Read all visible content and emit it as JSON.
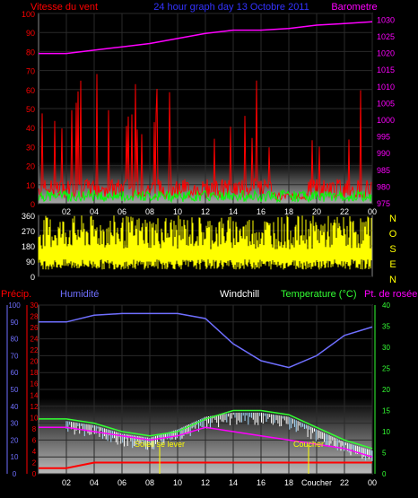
{
  "top_chart": {
    "title_left": "Vitesse du vent",
    "title_center": "24 hour graph day 13 Octobre 2011",
    "title_right": "Barometre",
    "left_axis_ticks": [
      "0",
      "10",
      "20",
      "30",
      "40",
      "50",
      "60",
      "70",
      "80",
      "90",
      "100"
    ],
    "right_axis_ticks": [
      "975",
      "980",
      "985",
      "990",
      "995",
      "1000",
      "1005",
      "1010",
      "1015",
      "1020",
      "1025",
      "1030"
    ],
    "x_ticks": [
      "02",
      "04",
      "06",
      "08",
      "10",
      "12",
      "14",
      "16",
      "18",
      "20",
      "22",
      "00"
    ],
    "colors": {
      "wind": "#ff0000",
      "gust": "#00ff00",
      "barometer": "#ff00ff",
      "left_axis": "#ff0000",
      "right_axis": "#ff00ff"
    }
  },
  "mid_chart": {
    "left_axis_ticks": [
      "0",
      "90",
      "180",
      "270",
      "360"
    ],
    "direction_labels": [
      "N",
      "O",
      "S",
      "E",
      "N"
    ],
    "color": "#ffff00"
  },
  "bottom_chart": {
    "label_precip": "Précip.",
    "label_humidity": "Humidité",
    "label_windchill": "Windchill",
    "label_temperature": "Temperature (°C)",
    "label_dewpoint": "Pt. de rosée",
    "humidity_ticks": [
      "0",
      "10",
      "20",
      "30",
      "40",
      "50",
      "60",
      "70",
      "80",
      "90",
      "100"
    ],
    "precip_ticks": [
      "0",
      "2",
      "4",
      "6",
      "8",
      "10",
      "12",
      "14",
      "16",
      "18",
      "20",
      "22",
      "24",
      "26",
      "28",
      "30"
    ],
    "temp_ticks": [
      "0",
      "5",
      "10",
      "15",
      "20",
      "25",
      "30",
      "35",
      "40"
    ],
    "x_ticks": [
      "02",
      "04",
      "06",
      "08",
      "10",
      "12",
      "14",
      "16",
      "18",
      "Coucher",
      "22",
      "00"
    ],
    "sunrise_label": "Soleil se lever",
    "sunset_label": "Coucher",
    "colors": {
      "precip": "#ff0000",
      "humidity": "#6f6fff",
      "temperature": "#33ff33",
      "windchill": "#ffffff",
      "dewpoint": "#ff00ff"
    }
  },
  "chart_data": [
    {
      "type": "line",
      "title": "24 hour graph day 13 Octobre 2011",
      "ylabel": "Vitesse du vent",
      "y2label": "Barometre",
      "x": [
        "02",
        "04",
        "06",
        "08",
        "10",
        "12",
        "14",
        "16",
        "18",
        "20",
        "22",
        "00"
      ],
      "ylim": [
        0,
        100
      ],
      "y2lim": [
        975,
        1032
      ],
      "series": [
        {
          "name": "Barometre",
          "axis": "right",
          "values": [
            1020,
            1021,
            1022,
            1023,
            1024.5,
            1026,
            1027,
            1027,
            1027.5,
            1028.5,
            1029,
            1029.5
          ]
        }
      ]
    },
    {
      "type": "bar",
      "ylim": [
        0,
        360
      ],
      "x": [
        "02",
        "04",
        "06",
        "08",
        "10",
        "12",
        "14",
        "16",
        "18",
        "20",
        "22",
        "00"
      ]
    },
    {
      "type": "line",
      "x": [
        "02",
        "04",
        "06",
        "08",
        "10",
        "12",
        "14",
        "16",
        "18",
        "Coucher",
        "22",
        "00"
      ],
      "series": [
        {
          "name": "Humidité",
          "axis": "humidity",
          "values": [
            90,
            94,
            95,
            95,
            95,
            92,
            77,
            67,
            63,
            70,
            82,
            87
          ]
        },
        {
          "name": "Temperature (°C)",
          "axis": "temp",
          "values": [
            13,
            12,
            10,
            9,
            10,
            13,
            15,
            15,
            14,
            11,
            8,
            6
          ]
        },
        {
          "name": "Windchill",
          "axis": "temp",
          "values": [
            12,
            11,
            9,
            8,
            10,
            13,
            14,
            14,
            13,
            10,
            7,
            5
          ]
        },
        {
          "name": "Pt. de rosée",
          "axis": "temp",
          "values": [
            11,
            10,
            9,
            8,
            9,
            11,
            10,
            9,
            8,
            7,
            6,
            4
          ]
        },
        {
          "name": "Précip.",
          "axis": "precip",
          "values": [
            1,
            2,
            2,
            2,
            2,
            2,
            2,
            2,
            2,
            2,
            2,
            2
          ]
        }
      ],
      "humidity_lim": [
        0,
        100
      ],
      "precip_lim": [
        0,
        30
      ],
      "temp_lim": [
        0,
        40
      ]
    }
  ]
}
